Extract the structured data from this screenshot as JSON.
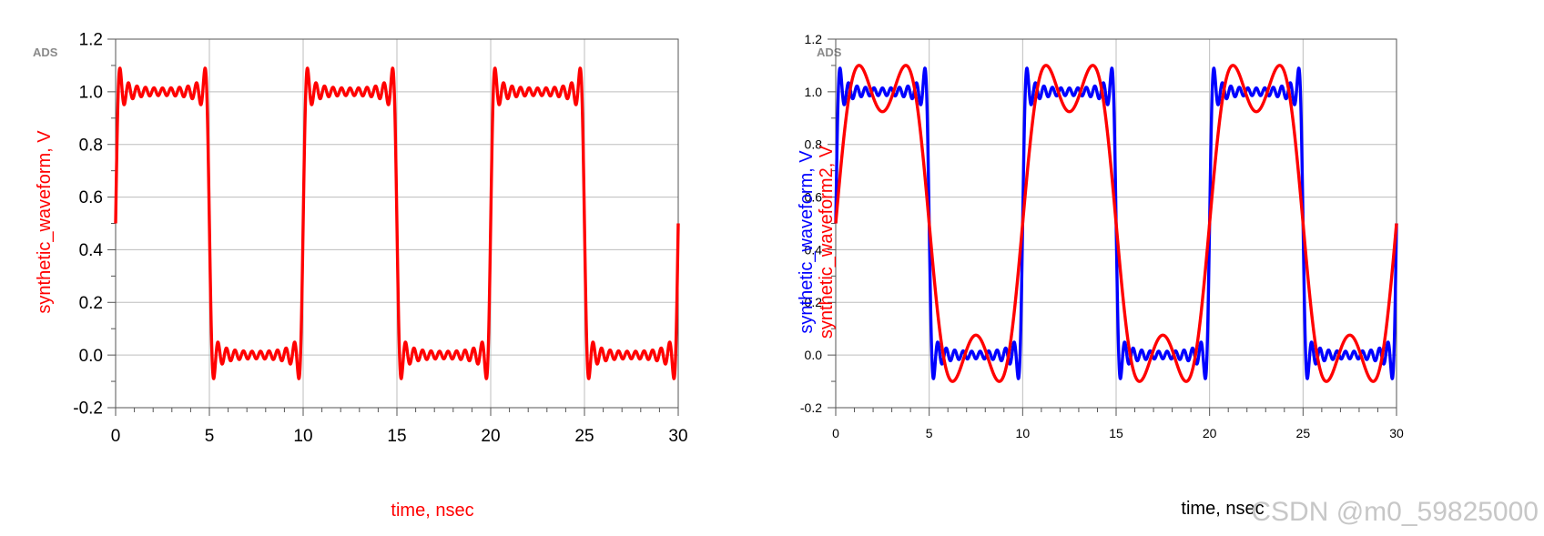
{
  "watermark": "CSDN @m0_59825000",
  "chart_data": [
    {
      "type": "line",
      "badge": "ADS",
      "xlabel": "time, nsec",
      "ylabel": "synthetic_waveform, V",
      "xlim": [
        0,
        30
      ],
      "ylim": [
        -0.2,
        1.2
      ],
      "x_ticks": [
        "0",
        "5",
        "10",
        "15",
        "20",
        "25",
        "30"
      ],
      "y_ticks": [
        "-0.2",
        "0.0",
        "0.2",
        "0.4",
        "0.6",
        "0.8",
        "1.0",
        "1.2"
      ],
      "grid": true,
      "series": [
        {
          "name": "synthetic_waveform, V",
          "color": "#ff0000",
          "model": "square_wave_fourier",
          "period_ns": 10,
          "offset": 0.5,
          "harmonics": 21,
          "range": [
            0.0,
            1.0
          ],
          "overshoot_peak": 1.09,
          "undershoot_min": -0.09
        }
      ]
    },
    {
      "type": "line",
      "badge": "ADS",
      "xlabel": "time, nsec",
      "ylabel": "synthetic_waveform, V",
      "ylabel2": "synthetic_waveform2, V",
      "xlim": [
        0,
        30
      ],
      "ylim": [
        -0.2,
        1.2
      ],
      "x_ticks": [
        "0",
        "5",
        "10",
        "15",
        "20",
        "25",
        "30"
      ],
      "y_ticks": [
        "-0.2",
        "0.0",
        "0.2",
        "0.4",
        "0.6",
        "0.8",
        "1.0",
        "1.2"
      ],
      "grid": true,
      "series": [
        {
          "name": "synthetic_waveform, V",
          "color": "#0000ff",
          "model": "square_wave_fourier",
          "period_ns": 10,
          "offset": 0.5,
          "harmonics": 21,
          "range": [
            0.0,
            1.0
          ],
          "overshoot_peak": 1.09,
          "undershoot_min": -0.09
        },
        {
          "name": "synthetic_waveform2, V",
          "color": "#ff0000",
          "model": "square_wave_fourier",
          "period_ns": 10,
          "offset": 0.5,
          "harmonics": 3,
          "range": [
            0.0,
            1.0
          ],
          "peak": 1.1,
          "min": -0.1
        }
      ]
    }
  ]
}
